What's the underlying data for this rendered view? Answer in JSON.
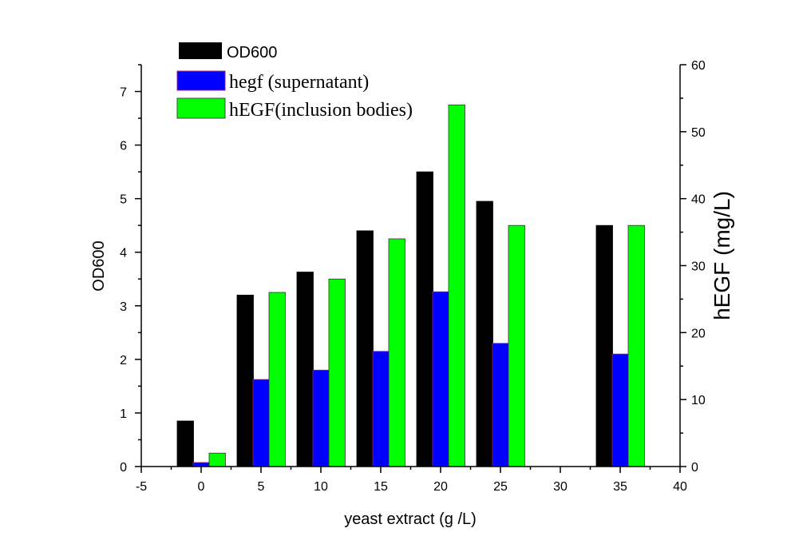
{
  "chart_data": {
    "type": "bar",
    "xlabel": "yeast extract (g /L)",
    "ylabel_left": "OD600",
    "ylabel_right": "hEGF (mg/L)",
    "xlim": [
      -5,
      40
    ],
    "ylim_left": [
      0,
      7.5
    ],
    "ylim_right": [
      0,
      60
    ],
    "x_ticks": [
      "-5",
      "0",
      "5",
      "10",
      "15",
      "20",
      "25",
      "30",
      "35",
      "40"
    ],
    "y_ticks_left": [
      "0",
      "1",
      "2",
      "3",
      "4",
      "5",
      "6",
      "7"
    ],
    "y_ticks_right": [
      "0",
      "10",
      "20",
      "30",
      "40",
      "50",
      "60"
    ],
    "categories": [
      0,
      5,
      10,
      15,
      20,
      25,
      35
    ],
    "series": [
      {
        "name": "OD600",
        "axis": "left",
        "color": "#000000",
        "values": [
          0.85,
          3.2,
          3.63,
          4.4,
          5.5,
          4.95,
          4.5
        ]
      },
      {
        "name": "hegf (supernatant)",
        "axis": "right",
        "color": "#0000ff",
        "values": [
          0.6,
          13.0,
          14.4,
          17.2,
          26.1,
          18.4,
          16.8
        ]
      },
      {
        "name": "hEGF(inclusion bodies)",
        "axis": "right",
        "color": "#00ff00",
        "values": [
          2.0,
          26.0,
          28.0,
          34.0,
          54.0,
          36.0,
          36.0
        ]
      }
    ],
    "legend_position": "top-left",
    "grid": false
  }
}
